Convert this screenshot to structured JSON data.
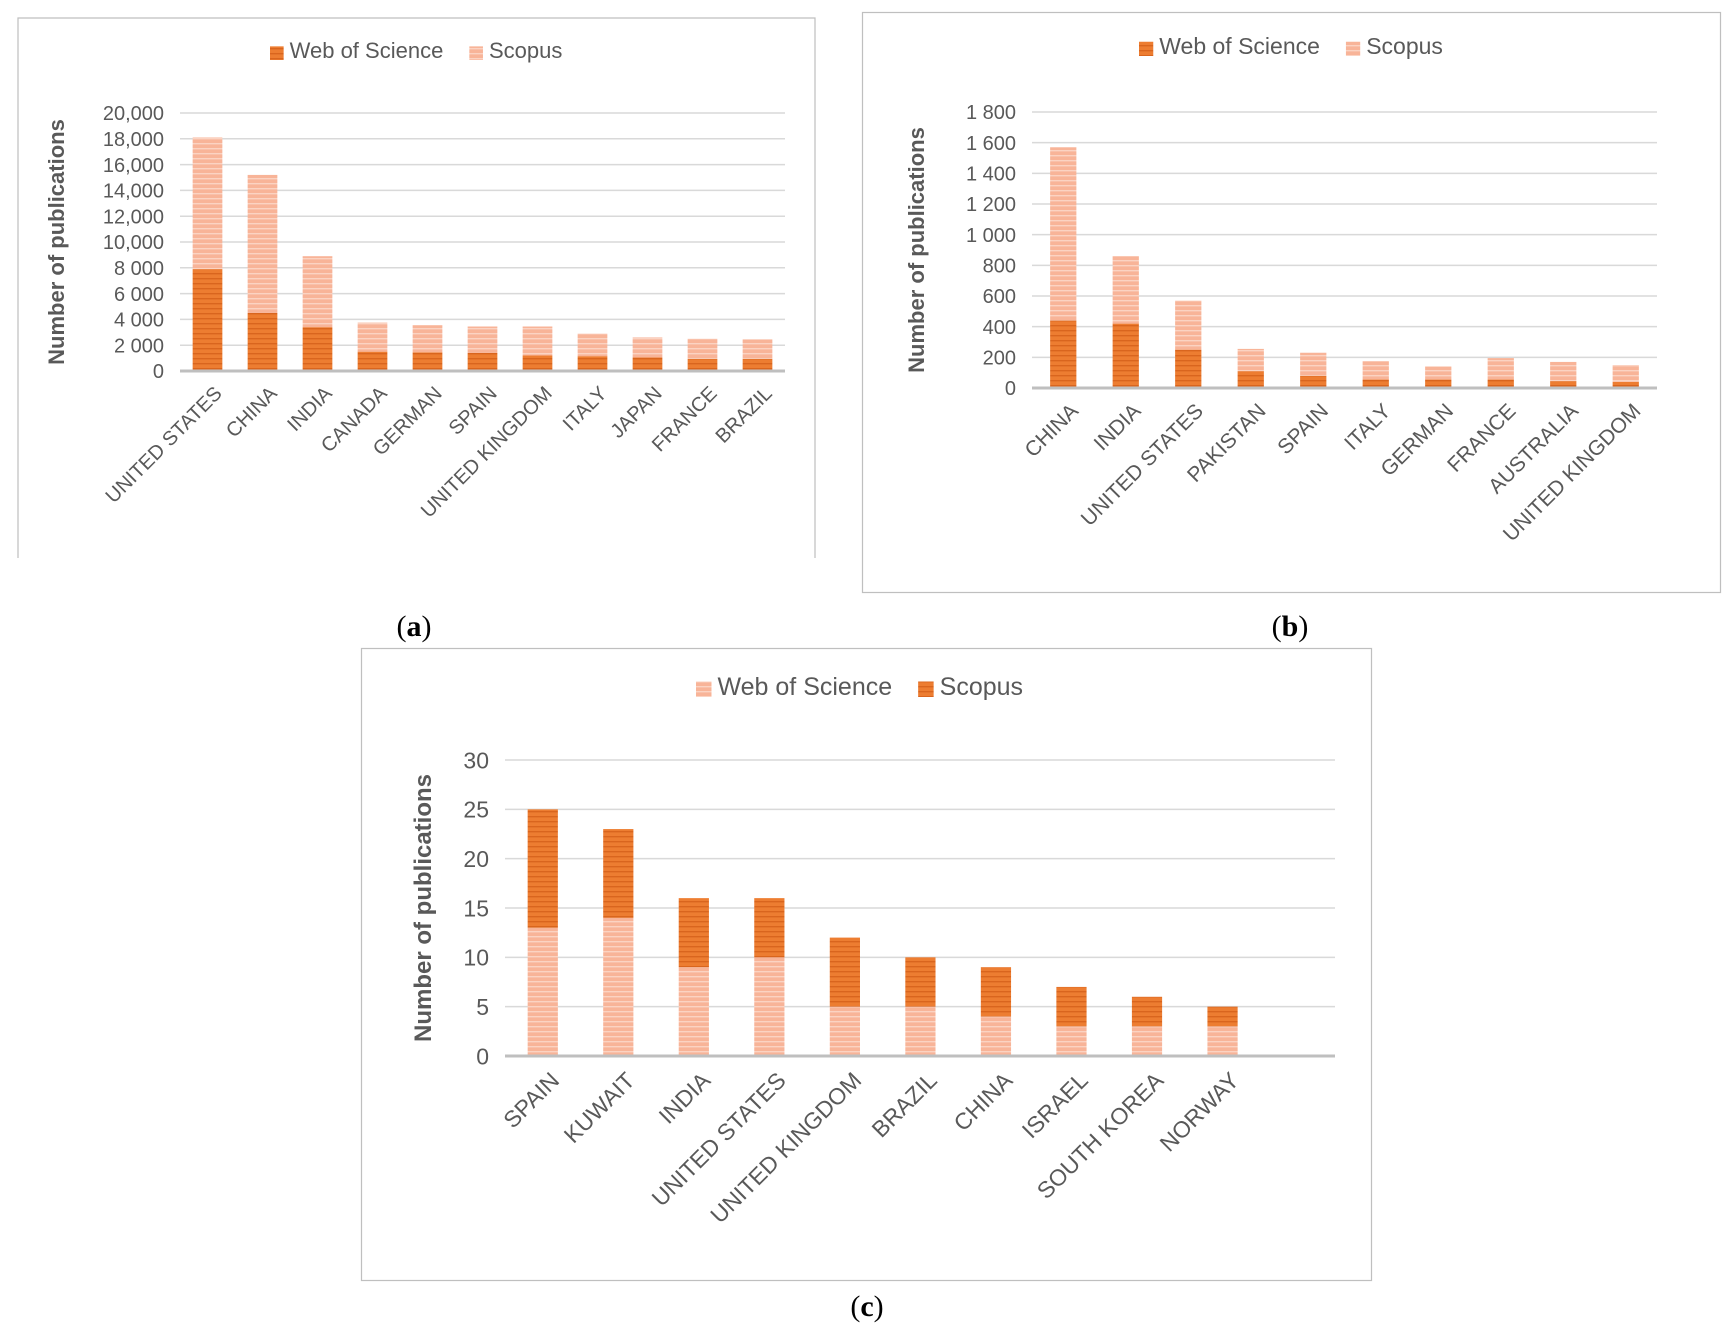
{
  "colors": {
    "dark": "#ED7D31",
    "dark_stripe": "#D9651E",
    "light": "#F8B498",
    "light_stripe": "#FBD3C2",
    "grid": "#D9D9D9",
    "axis": "#BFBFBF",
    "text": "#595959",
    "frame": "#BFBFBF"
  },
  "captions": {
    "a": "a",
    "b": "b",
    "c": "c"
  },
  "chart_data": [
    {
      "id": "a",
      "type": "bar",
      "stacked": true,
      "categories": [
        "UNITED STATES",
        "CHINA",
        "INDIA",
        "CANADA",
        "GERMAN",
        "SPAIN",
        "UNITED KINGDOM",
        "ITALY",
        "JAPAN",
        "FRANCE",
        "BRAZIL"
      ],
      "series": [
        {
          "name": "Web of Science",
          "color": "dark",
          "values": [
            7900,
            4500,
            3400,
            1500,
            1450,
            1400,
            1200,
            1150,
            1050,
            950,
            950
          ]
        },
        {
          "name": "Scopus",
          "color": "light",
          "values": [
            10200,
            10700,
            5500,
            2250,
            2100,
            2050,
            2250,
            1750,
            1550,
            1550,
            1500
          ]
        }
      ],
      "ylabel": "Number of publications",
      "ylim": [
        0,
        20000
      ],
      "yticks": [
        0,
        2000,
        4000,
        6000,
        8000,
        10000,
        12000,
        14000,
        16000,
        18000,
        20000
      ],
      "ytick_labels": [
        "0",
        "2 000",
        "4 000",
        "6 000",
        "8 000",
        "10,000",
        "12,000",
        "14,000",
        "16,000",
        "18,000",
        "20,000"
      ],
      "grid": true,
      "legend": "top"
    },
    {
      "id": "b",
      "type": "bar",
      "stacked": true,
      "categories": [
        "CHINA",
        "INDIA",
        "UNITED STATES",
        "PAKISTAN",
        "SPAIN",
        "ITALY",
        "GERMAN",
        "FRANCE",
        "AUSTRALIA",
        "UNITED KINGDOM"
      ],
      "series": [
        {
          "name": "Web of Science",
          "color": "dark",
          "values": [
            440,
            420,
            250,
            110,
            80,
            55,
            55,
            55,
            45,
            40
          ]
        },
        {
          "name": "Scopus",
          "color": "light",
          "values": [
            1130,
            440,
            320,
            145,
            150,
            120,
            85,
            140,
            125,
            110
          ]
        }
      ],
      "ylabel": "Number of publications",
      "ylim": [
        0,
        1800
      ],
      "yticks": [
        0,
        200,
        400,
        600,
        800,
        1000,
        1200,
        1400,
        1600,
        1800
      ],
      "ytick_labels": [
        "0",
        "200",
        "400",
        "600",
        "800",
        "1 000",
        "1 200",
        "1 400",
        "1 600",
        "1 800"
      ],
      "grid": true,
      "legend": "top"
    },
    {
      "id": "c",
      "type": "bar",
      "stacked": true,
      "categories": [
        "SPAIN",
        "KUWAIT",
        "INDIA",
        "UNITED STATES",
        "UNITED KINGDOM",
        "BRAZIL",
        "CHINA",
        "ISRAEL",
        "SOUTH KOREA",
        "NORWAY"
      ],
      "series": [
        {
          "name": "Web of Science",
          "color": "light",
          "values": [
            13,
            14,
            9,
            10,
            5,
            5,
            4,
            3,
            3,
            3
          ]
        },
        {
          "name": "Scopus",
          "color": "dark",
          "values": [
            12,
            9,
            7,
            6,
            7,
            5,
            5,
            4,
            3,
            2
          ]
        }
      ],
      "ylabel": "Number of publications",
      "ylim": [
        0,
        30
      ],
      "yticks": [
        0,
        5,
        10,
        15,
        20,
        25,
        30
      ],
      "ytick_labels": [
        "0",
        "5",
        "10",
        "15",
        "20",
        "25",
        "30"
      ],
      "grid": true,
      "legend": "top"
    }
  ]
}
